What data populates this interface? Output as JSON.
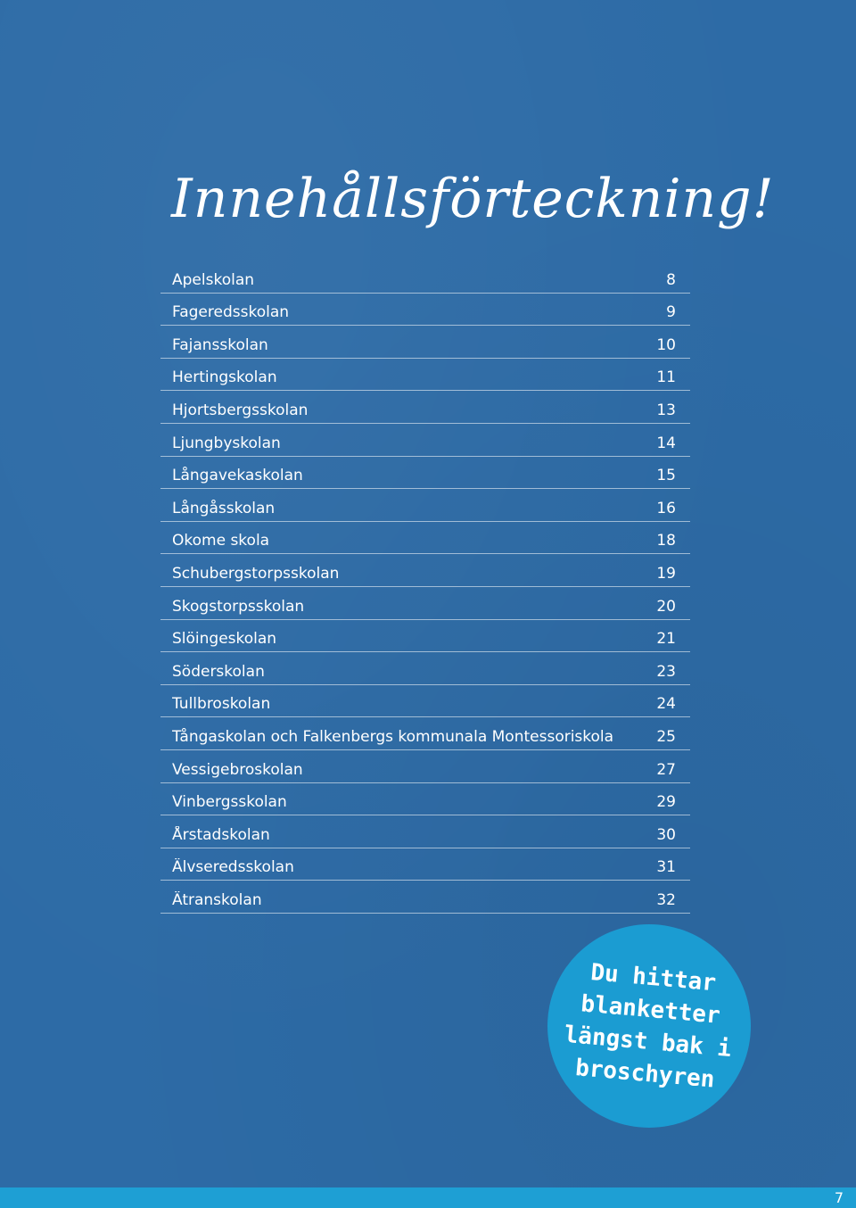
{
  "title": "Innehållsförteckning!",
  "toc": [
    {
      "name": "Apelskolan",
      "page": "8"
    },
    {
      "name": "Fageredsskolan",
      "page": "9"
    },
    {
      "name": "Fajansskolan",
      "page": "10"
    },
    {
      "name": "Hertingskolan",
      "page": "11"
    },
    {
      "name": "Hjortsbergsskolan",
      "page": "13"
    },
    {
      "name": "Ljungbyskolan",
      "page": "14"
    },
    {
      "name": "Långavekaskolan",
      "page": "15"
    },
    {
      "name": "Långåsskolan",
      "page": "16"
    },
    {
      "name": "Okome skola",
      "page": "18"
    },
    {
      "name": "Schubergstorpsskolan",
      "page": "19"
    },
    {
      "name": "Skogstorpsskolan",
      "page": "20"
    },
    {
      "name": "Slöingeskolan",
      "page": "21"
    },
    {
      "name": "Söderskolan",
      "page": "23"
    },
    {
      "name": "Tullbroskolan",
      "page": "24"
    },
    {
      "name": "Tångaskolan och Falkenbergs kommunala Montessoriskola",
      "page": "25"
    },
    {
      "name": "Vessigebroskolan",
      "page": "27"
    },
    {
      "name": "Vinbergsskolan",
      "page": "29"
    },
    {
      "name": "Årstadskolan",
      "page": "30"
    },
    {
      "name": "Älvseredsskolan",
      "page": "31"
    },
    {
      "name": "Ätranskolan",
      "page": "32"
    }
  ],
  "badge": {
    "lines": [
      "Du hittar",
      "blanketter",
      "längst bak i",
      "broschyren"
    ]
  },
  "footer": {
    "page_number": "7"
  },
  "colors": {
    "background": "#2d6ba6",
    "badge": "#1b9cd2",
    "footer_bar": "#1e9fd4",
    "text": "#ffffff"
  }
}
